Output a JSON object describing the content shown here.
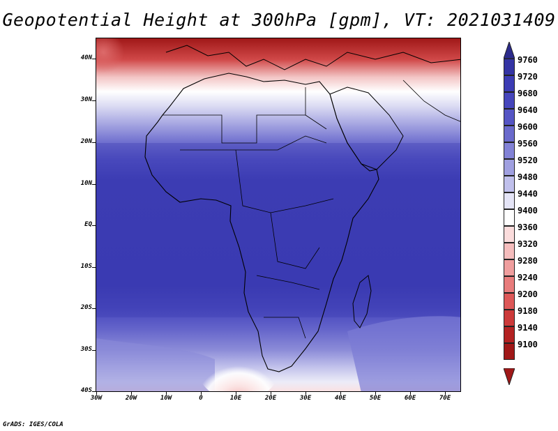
{
  "title": "Geopotential Height at 300hPa [gpm], VT: 2021031409",
  "footer": "GrADS: IGES/COLA",
  "map": {
    "region": "Africa",
    "lon_range": [
      -30,
      75
    ],
    "lat_range": [
      -40,
      45
    ],
    "lat_labels": [
      "40N",
      "30N",
      "20N",
      "10N",
      "EQ",
      "10S",
      "20S",
      "30S",
      "40S"
    ],
    "lon_labels": [
      "30W",
      "20W",
      "10W",
      "0",
      "10E",
      "20E",
      "30E",
      "40E",
      "50E",
      "60E",
      "70E"
    ]
  },
  "legend": {
    "levels": [
      "9760",
      "9720",
      "9680",
      "9640",
      "9600",
      "9560",
      "9520",
      "9480",
      "9440",
      "9400",
      "9360",
      "9320",
      "9280",
      "9240",
      "9200",
      "9180",
      "9140",
      "9100"
    ],
    "colors": [
      "#2c2b8c",
      "#3434a4",
      "#3c3cb4",
      "#4646bc",
      "#5555c4",
      "#6a6acc",
      "#8282d6",
      "#a0a0e0",
      "#c0c0ec",
      "#e4e4f6",
      "#ffffff",
      "#fbdcdc",
      "#f5bdbd",
      "#ef9e9e",
      "#e87c7c",
      "#dd5858",
      "#cc3a3a",
      "#b32222",
      "#a01818"
    ]
  }
}
